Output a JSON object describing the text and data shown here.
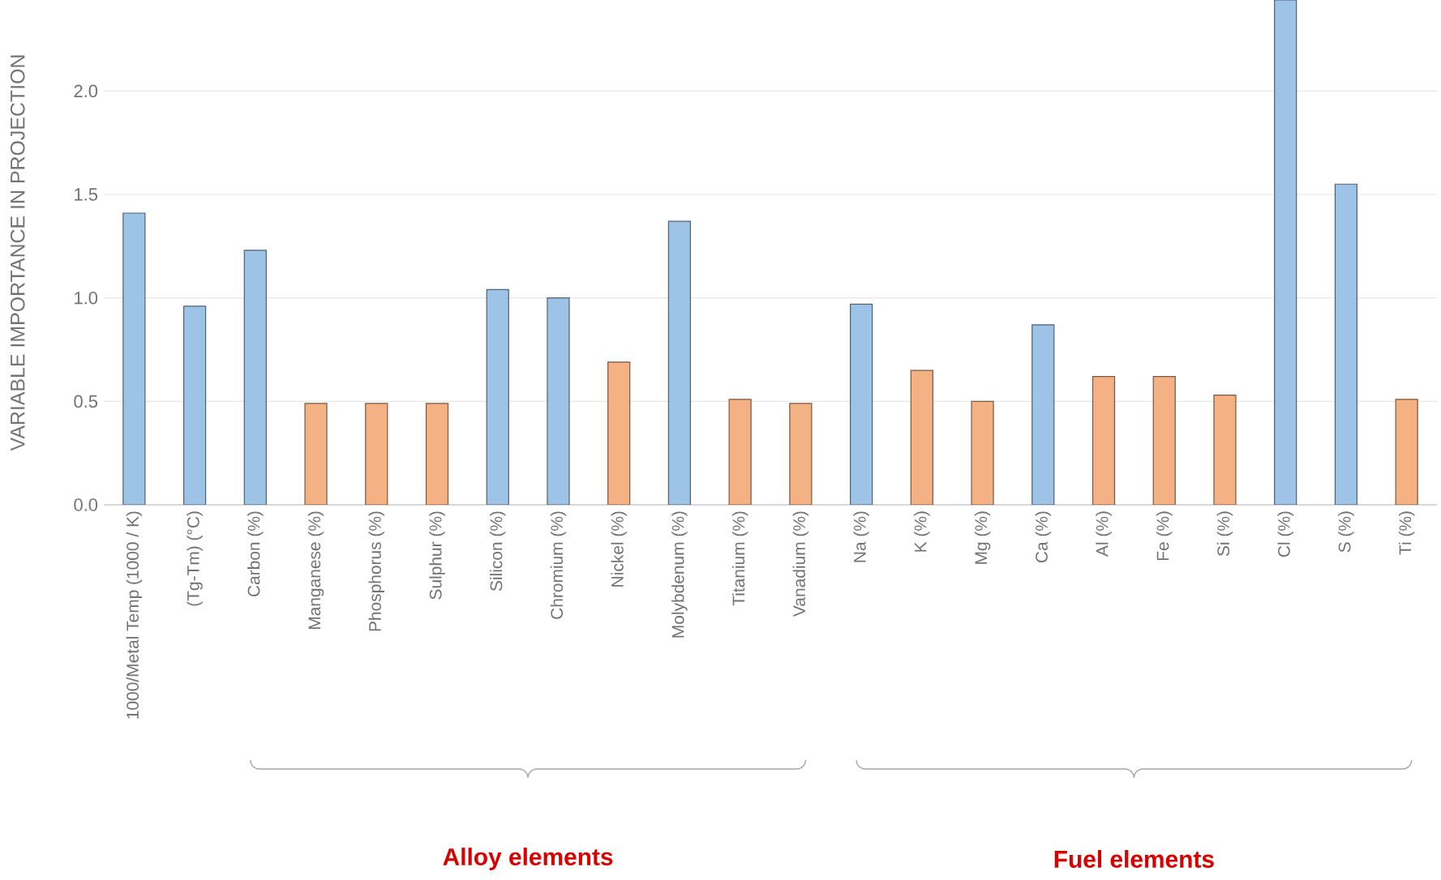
{
  "chart_data": {
    "type": "bar",
    "ylabel": "VARIABLE IMPORTANCE IN PROJECTION",
    "categories": [
      "1000/Metal Temp (1000 / K)",
      "(Tg-Tm) (°C)",
      "Carbon (%)",
      "Manganese (%)",
      "Phosphorus (%)",
      "Sulphur (%)",
      "Silicon (%)",
      "Chromium (%)",
      "Nickel (%)",
      "Molybdenum (%)",
      "Titanium (%)",
      "Vanadium (%)",
      "Na (%)",
      "K (%)",
      "Mg (%)",
      "Ca (%)",
      "Al (%)",
      "Fe (%)",
      "Si (%)",
      "Cl (%)",
      "S (%)",
      "Ti (%)"
    ],
    "values": [
      1.41,
      0.96,
      1.23,
      0.49,
      0.49,
      0.49,
      1.04,
      1.0,
      0.69,
      1.37,
      0.51,
      0.49,
      0.97,
      0.65,
      0.5,
      0.87,
      0.62,
      0.62,
      0.53,
      2.44,
      1.55,
      0.51
    ],
    "colors": [
      "#9dc3e6",
      "#9dc3e6",
      "#9dc3e6",
      "#f4b183",
      "#f4b183",
      "#f4b183",
      "#9dc3e6",
      "#9dc3e6",
      "#f4b183",
      "#9dc3e6",
      "#f4b183",
      "#f4b183",
      "#9dc3e6",
      "#f4b183",
      "#f4b183",
      "#9dc3e6",
      "#f4b183",
      "#f4b183",
      "#f4b183",
      "#9dc3e6",
      "#9dc3e6",
      "#f4b183"
    ],
    "ylim": [
      0,
      2.44
    ],
    "yticks": [
      {
        "value": 0,
        "label": "0.0"
      },
      {
        "value": 0.5,
        "label": "0.5"
      },
      {
        "value": 1,
        "label": "1.0"
      },
      {
        "value": 1.5,
        "label": "1.5"
      },
      {
        "value": 2,
        "label": "2.0"
      }
    ],
    "grid": "y",
    "annotations": [
      "Alloy elements",
      "Fuel elements"
    ]
  }
}
